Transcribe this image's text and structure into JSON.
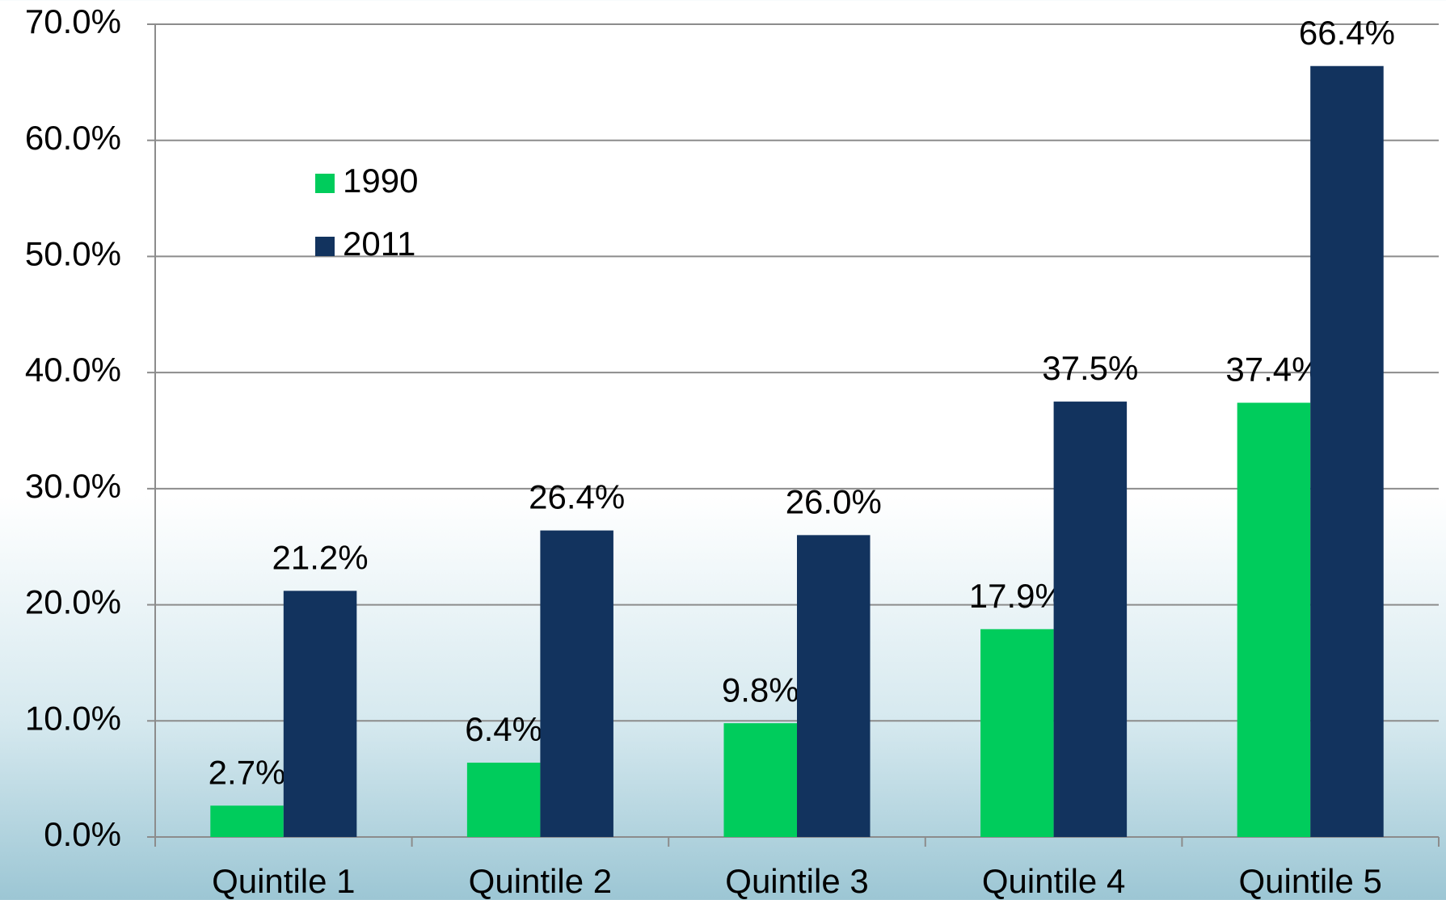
{
  "chart_data": {
    "type": "bar",
    "categories": [
      "Quintile 1",
      "Quintile 2",
      "Quintile 3",
      "Quintile 4",
      "Quintile 5"
    ],
    "series": [
      {
        "name": "1990",
        "color": "#00cc5c",
        "values": [
          2.7,
          6.4,
          9.8,
          17.9,
          37.4
        ],
        "value_labels": [
          "2.7%",
          "6.4%",
          "9.8%",
          "17.9%",
          "37.4%"
        ]
      },
      {
        "name": "2011",
        "color": "#12335e",
        "values": [
          21.2,
          26.4,
          26.0,
          37.5,
          66.4
        ],
        "value_labels": [
          "21.2%",
          "26.4%",
          "26.0%",
          "37.5%",
          "66.4%"
        ]
      }
    ],
    "ylim": [
      0,
      70
    ],
    "yticks": [
      {
        "value": 0,
        "label": "0.0%"
      },
      {
        "value": 10,
        "label": "10.0%"
      },
      {
        "value": 20,
        "label": "20.0%"
      },
      {
        "value": 30,
        "label": "30.0%"
      },
      {
        "value": 40,
        "label": "40.0%"
      },
      {
        "value": 50,
        "label": "50.0%"
      },
      {
        "value": 60,
        "label": "60.0%"
      },
      {
        "value": 70,
        "label": "70.0%"
      }
    ],
    "grid": true,
    "legend": "top-left"
  }
}
